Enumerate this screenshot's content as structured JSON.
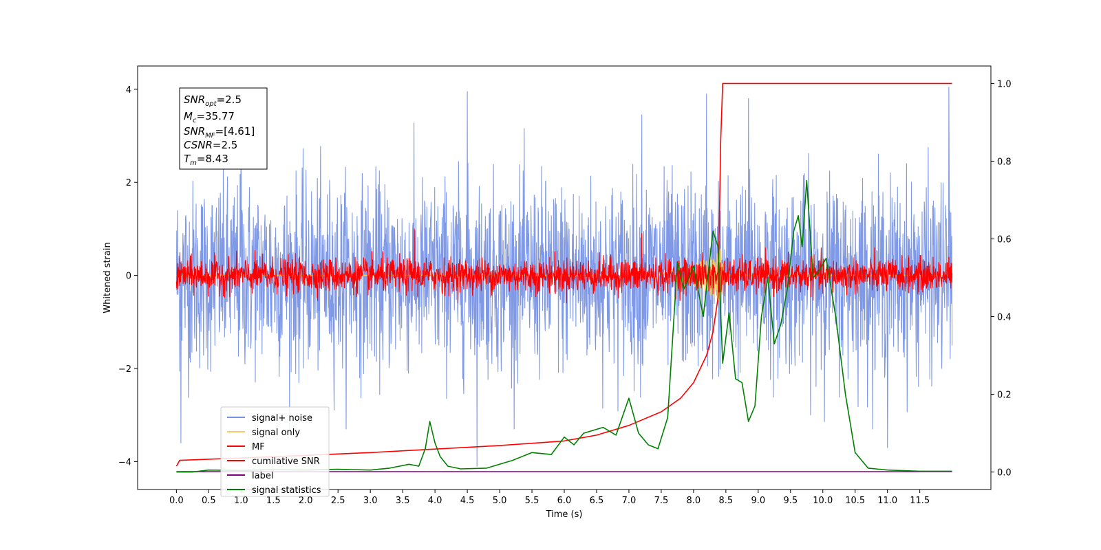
{
  "chart_data": {
    "type": "line",
    "title": "",
    "xlabel": "Time (s)",
    "ylabel": "Whitened strain",
    "xlim": [
      -0.6,
      12.6
    ],
    "ylim": [
      -4.6,
      4.5
    ],
    "y2lim": [
      -0.045,
      1.045
    ],
    "grid": false,
    "legend_position": "lower-left",
    "x_ticks": [
      "0.0",
      "0.5",
      "1.0",
      "1.5",
      "2.0",
      "2.5",
      "3.0",
      "3.5",
      "4.0",
      "4.5",
      "5.0",
      "5.5",
      "6.0",
      "6.5",
      "7.0",
      "7.5",
      "8.0",
      "8.5",
      "9.0",
      "9.5",
      "10.0",
      "10.5",
      "11.0",
      "11.5"
    ],
    "y_ticks": [
      "4",
      "2",
      "0",
      "−2",
      "−4"
    ],
    "y2_ticks": [
      "1.0",
      "0.8",
      "0.6",
      "0.4",
      "0.2",
      "0.0"
    ],
    "annotations": {
      "snr_opt": "=2.5",
      "mc": "=35.77",
      "snr_mf": "=[4.61]",
      "csnr": "=2.5",
      "tm": "=8.43"
    },
    "series": [
      {
        "name": "signal+ noise",
        "axis": "left",
        "color": "#7893e6",
        "kind": "noise",
        "x_range": [
          0,
          12
        ],
        "mean": 0,
        "std": 1.0,
        "extremes": [
          [
            0.07,
            -3.6
          ],
          [
            1.0,
            3.4
          ],
          [
            4.5,
            3.95
          ],
          [
            4.65,
            -4.1
          ],
          [
            7.2,
            3.45
          ],
          [
            8.2,
            3.9
          ],
          [
            8.85,
            3.8
          ],
          [
            11.0,
            -3.7
          ],
          [
            11.95,
            4.05
          ]
        ]
      },
      {
        "name": "signal only",
        "axis": "left",
        "color": "#f5c86a",
        "kind": "chirp",
        "x_range": [
          0,
          12
        ],
        "peak_x": 8.43,
        "amplitude": 0.6
      },
      {
        "name": "MF",
        "axis": "left",
        "color": "#ff0000",
        "kind": "noise",
        "x_range": [
          0,
          12
        ],
        "mean": 0,
        "std": 0.18,
        "extremes": [
          [
            3.68,
            1.0
          ],
          [
            7.2,
            0.9
          ],
          [
            8.3,
            -0.4
          ]
        ]
      },
      {
        "name": "cumilative SNR",
        "axis": "right",
        "color": "#ff0000",
        "x": [
          0,
          0.05,
          1,
          2,
          3,
          4,
          5,
          6,
          6.5,
          7,
          7.5,
          7.8,
          8.0,
          8.2,
          8.3,
          8.38,
          8.42,
          8.45,
          12.0
        ],
        "y": [
          0.015,
          0.03,
          0.036,
          0.043,
          0.05,
          0.059,
          0.068,
          0.08,
          0.095,
          0.12,
          0.155,
          0.19,
          0.23,
          0.3,
          0.36,
          0.45,
          0.85,
          1.0,
          1.0
        ]
      },
      {
        "name": "label",
        "axis": "right",
        "color": "#800080",
        "x": [
          0,
          12
        ],
        "y": [
          0.001,
          0.001
        ]
      },
      {
        "name": "signal statistics",
        "axis": "right",
        "color": "#008000",
        "x": [
          0,
          0.25,
          0.5,
          1.0,
          1.5,
          2.0,
          2.5,
          3.0,
          3.3,
          3.6,
          3.75,
          3.85,
          3.92,
          4.0,
          4.08,
          4.2,
          4.4,
          4.8,
          5.2,
          5.5,
          5.8,
          6.0,
          6.15,
          6.3,
          6.6,
          6.8,
          7.0,
          7.15,
          7.3,
          7.45,
          7.6,
          7.75,
          7.85,
          8.0,
          8.15,
          8.3,
          8.38,
          8.45,
          8.55,
          8.65,
          8.75,
          8.85,
          8.95,
          9.05,
          9.15,
          9.25,
          9.35,
          9.45,
          9.55,
          9.62,
          9.68,
          9.75,
          9.85,
          9.95,
          10.05,
          10.2,
          10.35,
          10.5,
          10.7,
          11.0,
          11.5,
          12.0
        ],
        "y": [
          0,
          0,
          0.005,
          0.004,
          0.006,
          0.005,
          0.007,
          0.005,
          0.01,
          0.02,
          0.015,
          0.06,
          0.13,
          0.075,
          0.04,
          0.015,
          0.008,
          0.01,
          0.03,
          0.05,
          0.045,
          0.09,
          0.07,
          0.1,
          0.115,
          0.095,
          0.19,
          0.1,
          0.07,
          0.06,
          0.14,
          0.54,
          0.47,
          0.53,
          0.4,
          0.62,
          0.58,
          0.28,
          0.41,
          0.24,
          0.23,
          0.13,
          0.17,
          0.4,
          0.5,
          0.33,
          0.38,
          0.47,
          0.62,
          0.66,
          0.58,
          0.75,
          0.5,
          0.52,
          0.55,
          0.4,
          0.2,
          0.05,
          0.01,
          0.005,
          0.002,
          0.002
        ]
      }
    ]
  }
}
